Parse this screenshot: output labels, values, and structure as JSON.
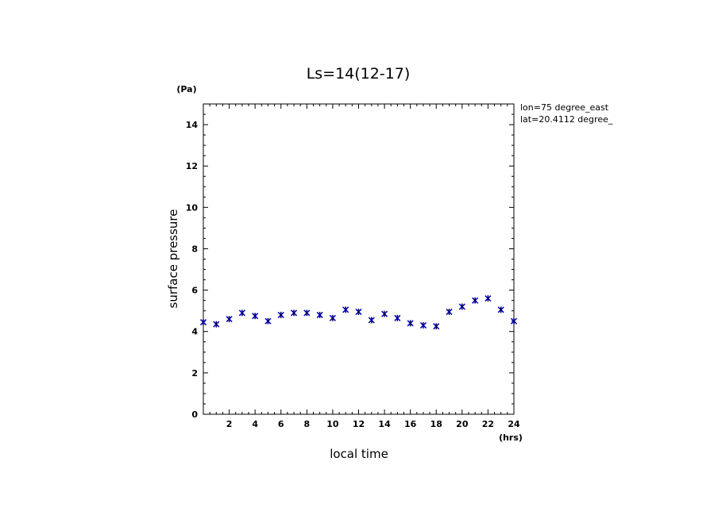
{
  "chart_data": {
    "type": "scatter",
    "title": "Ls=14(12-17)",
    "xlabel": "local time",
    "ylabel": "surface pressure",
    "x_unit": "(hrs)",
    "y_unit": "(Pa)",
    "xlim": [
      0,
      24
    ],
    "ylim": [
      0,
      15
    ],
    "x_ticks": [
      2,
      4,
      6,
      8,
      10,
      12,
      14,
      16,
      18,
      20,
      22,
      24
    ],
    "y_ticks": [
      0,
      2,
      4,
      6,
      8,
      10,
      12,
      14
    ],
    "annotations": [
      "lon=75 degree_east",
      "lat=20.4112 degree_"
    ],
    "marker_color": "#0000cc",
    "x": [
      0,
      1,
      2,
      3,
      4,
      5,
      6,
      7,
      8,
      9,
      10,
      11,
      12,
      13,
      14,
      15,
      16,
      17,
      18,
      19,
      20,
      21,
      22,
      23,
      24
    ],
    "values": [
      4.45,
      4.35,
      4.6,
      4.9,
      4.75,
      4.5,
      4.8,
      4.9,
      4.9,
      4.8,
      4.65,
      5.05,
      4.95,
      4.55,
      4.85,
      4.65,
      4.4,
      4.3,
      4.25,
      4.95,
      5.2,
      5.5,
      5.6,
      5.05,
      4.5
    ],
    "grid": false
  }
}
